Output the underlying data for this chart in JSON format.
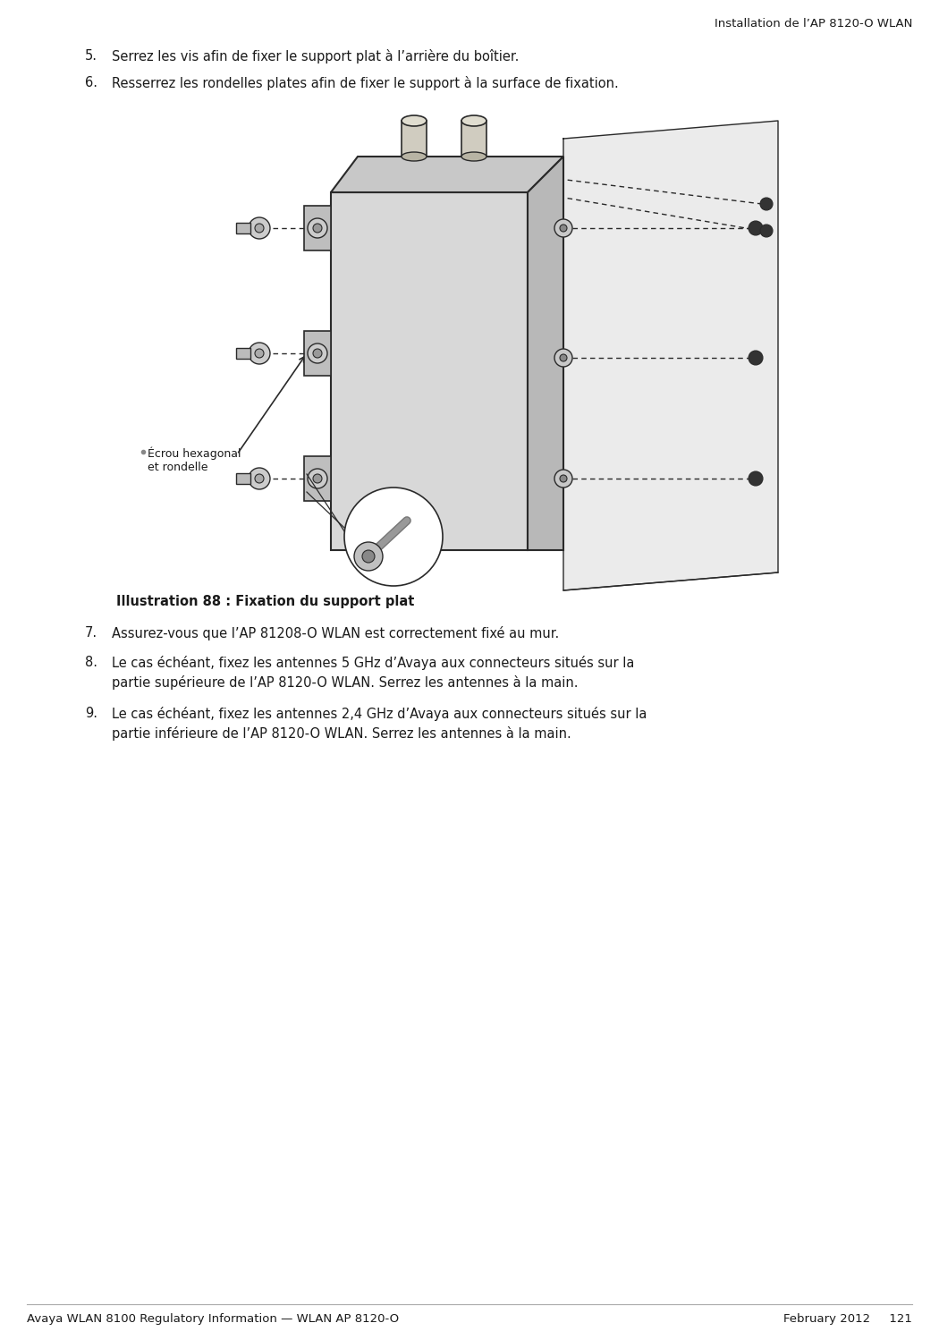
{
  "header_right": "Installation de l’AP 8120-O WLAN",
  "footer_left": "Avaya WLAN 8100 Regulatory Information — WLAN AP 8120-O",
  "footer_right": "February 2012     121",
  "item5": "Serrez les vis afin de fixer le support plat à l’arrière du boîtier.",
  "item6": "Resserrez les rondelles plates afin de fixer le support à la surface de fixation.",
  "caption": "Illustration 88 : Fixation du support plat",
  "item7": "Assurez-vous que l’AP 81208-O WLAN est correctement fixé au mur.",
  "item8_line1": "Le cas échéant, fixez les antennes 5 GHz d’Avaya aux connecteurs situés sur la",
  "item8_line2": "partie supérieure de l’AP 8120-O WLAN. Serrez les antennes à la main.",
  "item9_line1": "Le cas échéant, fixez les antennes 2,4 GHz d’Avaya aux connecteurs situés sur la",
  "item9_line2": "partie inférieure de l’AP 8120-O WLAN. Serrez les antennes à la main.",
  "label_ecrou_line1": "Écrou hexagonal",
  "label_ecrou_line2": "et rondelle",
  "bg_color": "#ffffff",
  "text_color": "#1a1a1a",
  "draw_color": "#2a2a2a",
  "body_fontsize": 10.5,
  "header_fontsize": 9.5,
  "footer_fontsize": 9.5,
  "caption_fontsize": 10.5
}
